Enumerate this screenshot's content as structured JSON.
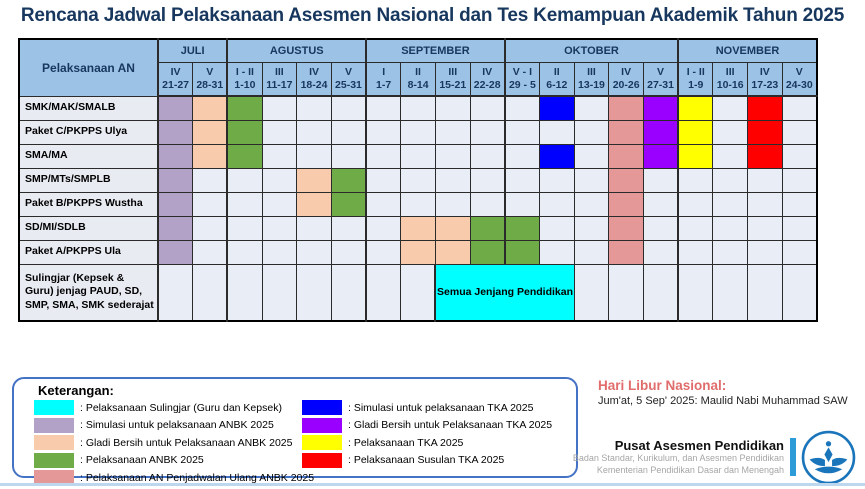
{
  "title": "Rencana Jadwal Pelaksanaan Asesmen Nasional dan Tes Kemampuan Akademik Tahun 2025",
  "colors": {
    "sulingjar": "#00FFFF",
    "sim_anbk": "#B3A2C7",
    "gladi_anbk": "#F8CBAD",
    "anbk": "#6FAC47",
    "ulang_anbk": "#E59898",
    "sim_tka": "#0000FF",
    "gladi_tka": "#9900FF",
    "tka": "#FFFF00",
    "sus_tka": "#FF0000",
    "header_bg": "#9CC2E5",
    "header_text": "#17375E",
    "accent_border": "#4472C4",
    "holiday_title": "#E06C6C",
    "footer_bar": "#2D9BD8",
    "bottom_line": "#BDD7EE"
  },
  "table": {
    "corner_label": "Pelaksanaan AN",
    "months": [
      {
        "label": "JULI",
        "span": 2
      },
      {
        "label": "AGUSTUS",
        "span": 4
      },
      {
        "label": "SEPTEMBER",
        "span": 4
      },
      {
        "label": "OKTOBER",
        "span": 5
      },
      {
        "label": "NOVEMBER",
        "span": 4
      }
    ],
    "weeks": [
      {
        "roman": "IV",
        "dates": "21-27"
      },
      {
        "roman": "V",
        "dates": "28-31"
      },
      {
        "roman": "I - II",
        "dates": "1-10"
      },
      {
        "roman": "III",
        "dates": "11-17"
      },
      {
        "roman": "IV",
        "dates": "18-24"
      },
      {
        "roman": "V",
        "dates": "25-31"
      },
      {
        "roman": "I",
        "dates": "1-7"
      },
      {
        "roman": "II",
        "dates": "8-14"
      },
      {
        "roman": "III",
        "dates": "15-21"
      },
      {
        "roman": "IV",
        "dates": "22-28"
      },
      {
        "roman": "V - I",
        "dates": "29 - 5"
      },
      {
        "roman": "II",
        "dates": "6-12"
      },
      {
        "roman": "III",
        "dates": "13-19"
      },
      {
        "roman": "IV",
        "dates": "20-26"
      },
      {
        "roman": "V",
        "dates": "27-31"
      },
      {
        "roman": "I - II",
        "dates": "1-9"
      },
      {
        "roman": "III",
        "dates": "10-16"
      },
      {
        "roman": "IV",
        "dates": "17-23"
      },
      {
        "roman": "V",
        "dates": "24-30"
      }
    ],
    "rows": [
      {
        "label": "SMK/MAK/SMALB",
        "cells": [
          "sim_anbk",
          "gladi_anbk",
          "anbk",
          "",
          "",
          "",
          "",
          "",
          "",
          "",
          "",
          "sim_tka",
          "",
          "ulang_anbk",
          "gladi_tka",
          "tka",
          "",
          "sus_tka",
          ""
        ]
      },
      {
        "label": "Paket C/PKPPS Ulya",
        "cells": [
          "sim_anbk",
          "gladi_anbk",
          "anbk",
          "",
          "",
          "",
          "",
          "",
          "",
          "",
          "",
          "",
          "",
          "ulang_anbk",
          "gladi_tka",
          "tka",
          "",
          "sus_tka",
          ""
        ]
      },
      {
        "label": "SMA/MA",
        "cells": [
          "sim_anbk",
          "gladi_anbk",
          "anbk",
          "",
          "",
          "",
          "",
          "",
          "",
          "",
          "",
          "sim_tka",
          "",
          "ulang_anbk",
          "gladi_tka",
          "tka",
          "",
          "sus_tka",
          ""
        ]
      },
      {
        "label": "SMP/MTs/SMPLB",
        "cells": [
          "sim_anbk",
          "",
          "",
          "",
          "gladi_anbk",
          "anbk",
          "",
          "",
          "",
          "",
          "",
          "",
          "",
          "ulang_anbk",
          "",
          "",
          "",
          "",
          ""
        ]
      },
      {
        "label": "Paket B/PKPPS Wustha",
        "cells": [
          "sim_anbk",
          "",
          "",
          "",
          "gladi_anbk",
          "anbk",
          "",
          "",
          "",
          "",
          "",
          "",
          "",
          "ulang_anbk",
          "",
          "",
          "",
          "",
          ""
        ]
      },
      {
        "label": "SD/MI/SDLB",
        "cells": [
          "sim_anbk",
          "",
          "",
          "",
          "",
          "",
          "",
          "gladi_anbk",
          "gladi_anbk",
          "anbk",
          "anbk",
          "",
          "",
          "ulang_anbk",
          "",
          "",
          "",
          "",
          ""
        ]
      },
      {
        "label": "Paket A/PKPPS Ula",
        "cells": [
          "sim_anbk",
          "",
          "",
          "",
          "",
          "",
          "",
          "gladi_anbk",
          "gladi_anbk",
          "anbk",
          "anbk",
          "",
          "",
          "ulang_anbk",
          "",
          "",
          "",
          "",
          ""
        ]
      },
      {
        "label": "Sulingjar (Kepsek & Guru) jenjag PAUD, SD, SMP, SMA, SMK  sederajat",
        "cells": [
          "",
          "",
          "",
          "",
          "",
          "",
          "",
          "",
          "",
          "",
          "",
          "",
          "",
          "",
          "",
          "",
          "",
          "",
          ""
        ],
        "merge": {
          "start": 8,
          "span": 4,
          "color": "sulingjar",
          "label": "Semua Jenjang Pendidikan"
        }
      }
    ]
  },
  "legend": {
    "title": "Keterangan:",
    "left": [
      {
        "color": "sulingjar",
        "label": ": Pelaksanaan Sulingjar (Guru dan Kepsek)"
      },
      {
        "color": "sim_anbk",
        "label": ": Simulasi untuk pelaksanaan ANBK 2025"
      },
      {
        "color": "gladi_anbk",
        "label": ": Gladi Bersih untuk Pelaksanaan ANBK 2025"
      },
      {
        "color": "anbk",
        "label": ": Pelaksanaan ANBK 2025"
      },
      {
        "color": "ulang_anbk",
        "label": ": Pelaksanaan AN Penjadwalan Ulang ANBK 2025"
      }
    ],
    "right": [
      {
        "color": "sim_tka",
        "label": ": Simulasi untuk pelaksanaan TKA 2025"
      },
      {
        "color": "gladi_tka",
        "label": ": Gladi Bersih untuk Pelaksanaan TKA 2025"
      },
      {
        "color": "tka",
        "label": ": Pelaksanaan TKA 2025"
      },
      {
        "color": "sus_tka",
        "label": ": Pelaksanaan Susulan TKA 2025"
      }
    ]
  },
  "holiday": {
    "title": "Hari Libur Nasional:",
    "text": "Jum'at, 5 Sep' 2025: Maulid Nabi Muhammad SAW"
  },
  "footer": {
    "org": "Pusat Asesmen Pendidikan",
    "line1": "Badan Standar, Kurikulum, dan Asesmen Pendidikan",
    "line2": "Kementerian Pendidikan Dasar dan Menengah"
  }
}
